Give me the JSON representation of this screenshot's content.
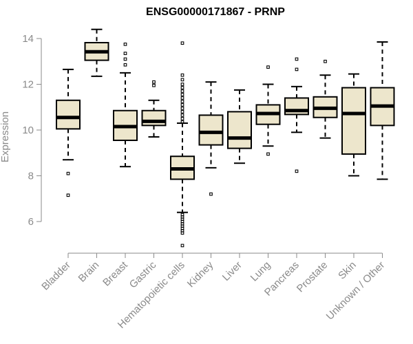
{
  "chart_data": {
    "type": "box",
    "title": "ENSG00000171867 - PRNP",
    "ylabel": "Expression",
    "xlabel": "",
    "ylim": [
      5,
      14.5
    ],
    "yticks": [
      6,
      8,
      10,
      12,
      14
    ],
    "grid": false,
    "colors": {
      "box_fill": "#ede6cc",
      "median": "#000000",
      "axis": "#8a8a8a"
    },
    "boxes": [
      {
        "category": "Bladder",
        "q1": 10.05,
        "median": 10.55,
        "q3": 11.3,
        "whisker_low": 8.7,
        "whisker_high": 12.65,
        "outliers": [
          8.1,
          7.15
        ]
      },
      {
        "category": "Brain",
        "q1": 13.05,
        "median": 13.42,
        "q3": 13.82,
        "whisker_low": 12.35,
        "whisker_high": 14.4,
        "outliers": []
      },
      {
        "category": "Breast",
        "q1": 9.55,
        "median": 10.15,
        "q3": 10.85,
        "whisker_low": 8.4,
        "whisker_high": 12.5,
        "outliers": [
          12.85,
          13.1,
          13.35,
          13.75
        ]
      },
      {
        "category": "Gastric",
        "q1": 10.2,
        "median": 10.38,
        "q3": 10.85,
        "whisker_low": 9.7,
        "whisker_high": 11.3,
        "outliers": [
          11.95,
          12.1
        ]
      },
      {
        "category": "Hematopoietic cells",
        "q1": 7.85,
        "median": 8.3,
        "q3": 8.85,
        "whisker_low": 6.4,
        "whisker_high": 10.3,
        "outliers": [
          4.95,
          5.5,
          5.6,
          5.7,
          5.8,
          5.9,
          6.0,
          6.1,
          6.2,
          6.3,
          10.35,
          10.5,
          10.65,
          10.8,
          10.95,
          11.1,
          11.25,
          11.4,
          11.55,
          11.7,
          11.85,
          12.0,
          12.2,
          12.4,
          13.8
        ]
      },
      {
        "category": "Kidney",
        "q1": 9.35,
        "median": 9.9,
        "q3": 10.65,
        "whisker_low": 8.35,
        "whisker_high": 12.1,
        "outliers": [
          7.2
        ]
      },
      {
        "category": "Liver",
        "q1": 9.2,
        "median": 9.65,
        "q3": 10.8,
        "whisker_low": 8.55,
        "whisker_high": 11.75,
        "outliers": []
      },
      {
        "category": "Lung",
        "q1": 10.25,
        "median": 10.72,
        "q3": 11.1,
        "whisker_low": 9.3,
        "whisker_high": 12.0,
        "outliers": [
          8.95,
          12.75
        ]
      },
      {
        "category": "Pancreas",
        "q1": 10.68,
        "median": 10.85,
        "q3": 11.4,
        "whisker_low": 9.9,
        "whisker_high": 11.9,
        "outliers": [
          8.2,
          12.65,
          13.1
        ]
      },
      {
        "category": "Prostate",
        "q1": 10.55,
        "median": 10.95,
        "q3": 11.45,
        "whisker_low": 9.65,
        "whisker_high": 12.4,
        "outliers": [
          13.0
        ]
      },
      {
        "category": "Skin",
        "q1": 8.95,
        "median": 10.72,
        "q3": 11.85,
        "whisker_low": 8.0,
        "whisker_high": 12.45,
        "outliers": []
      },
      {
        "category": "Unknown / Other",
        "q1": 10.2,
        "median": 11.05,
        "q3": 11.85,
        "whisker_low": 7.85,
        "whisker_high": 13.85,
        "outliers": []
      }
    ]
  }
}
